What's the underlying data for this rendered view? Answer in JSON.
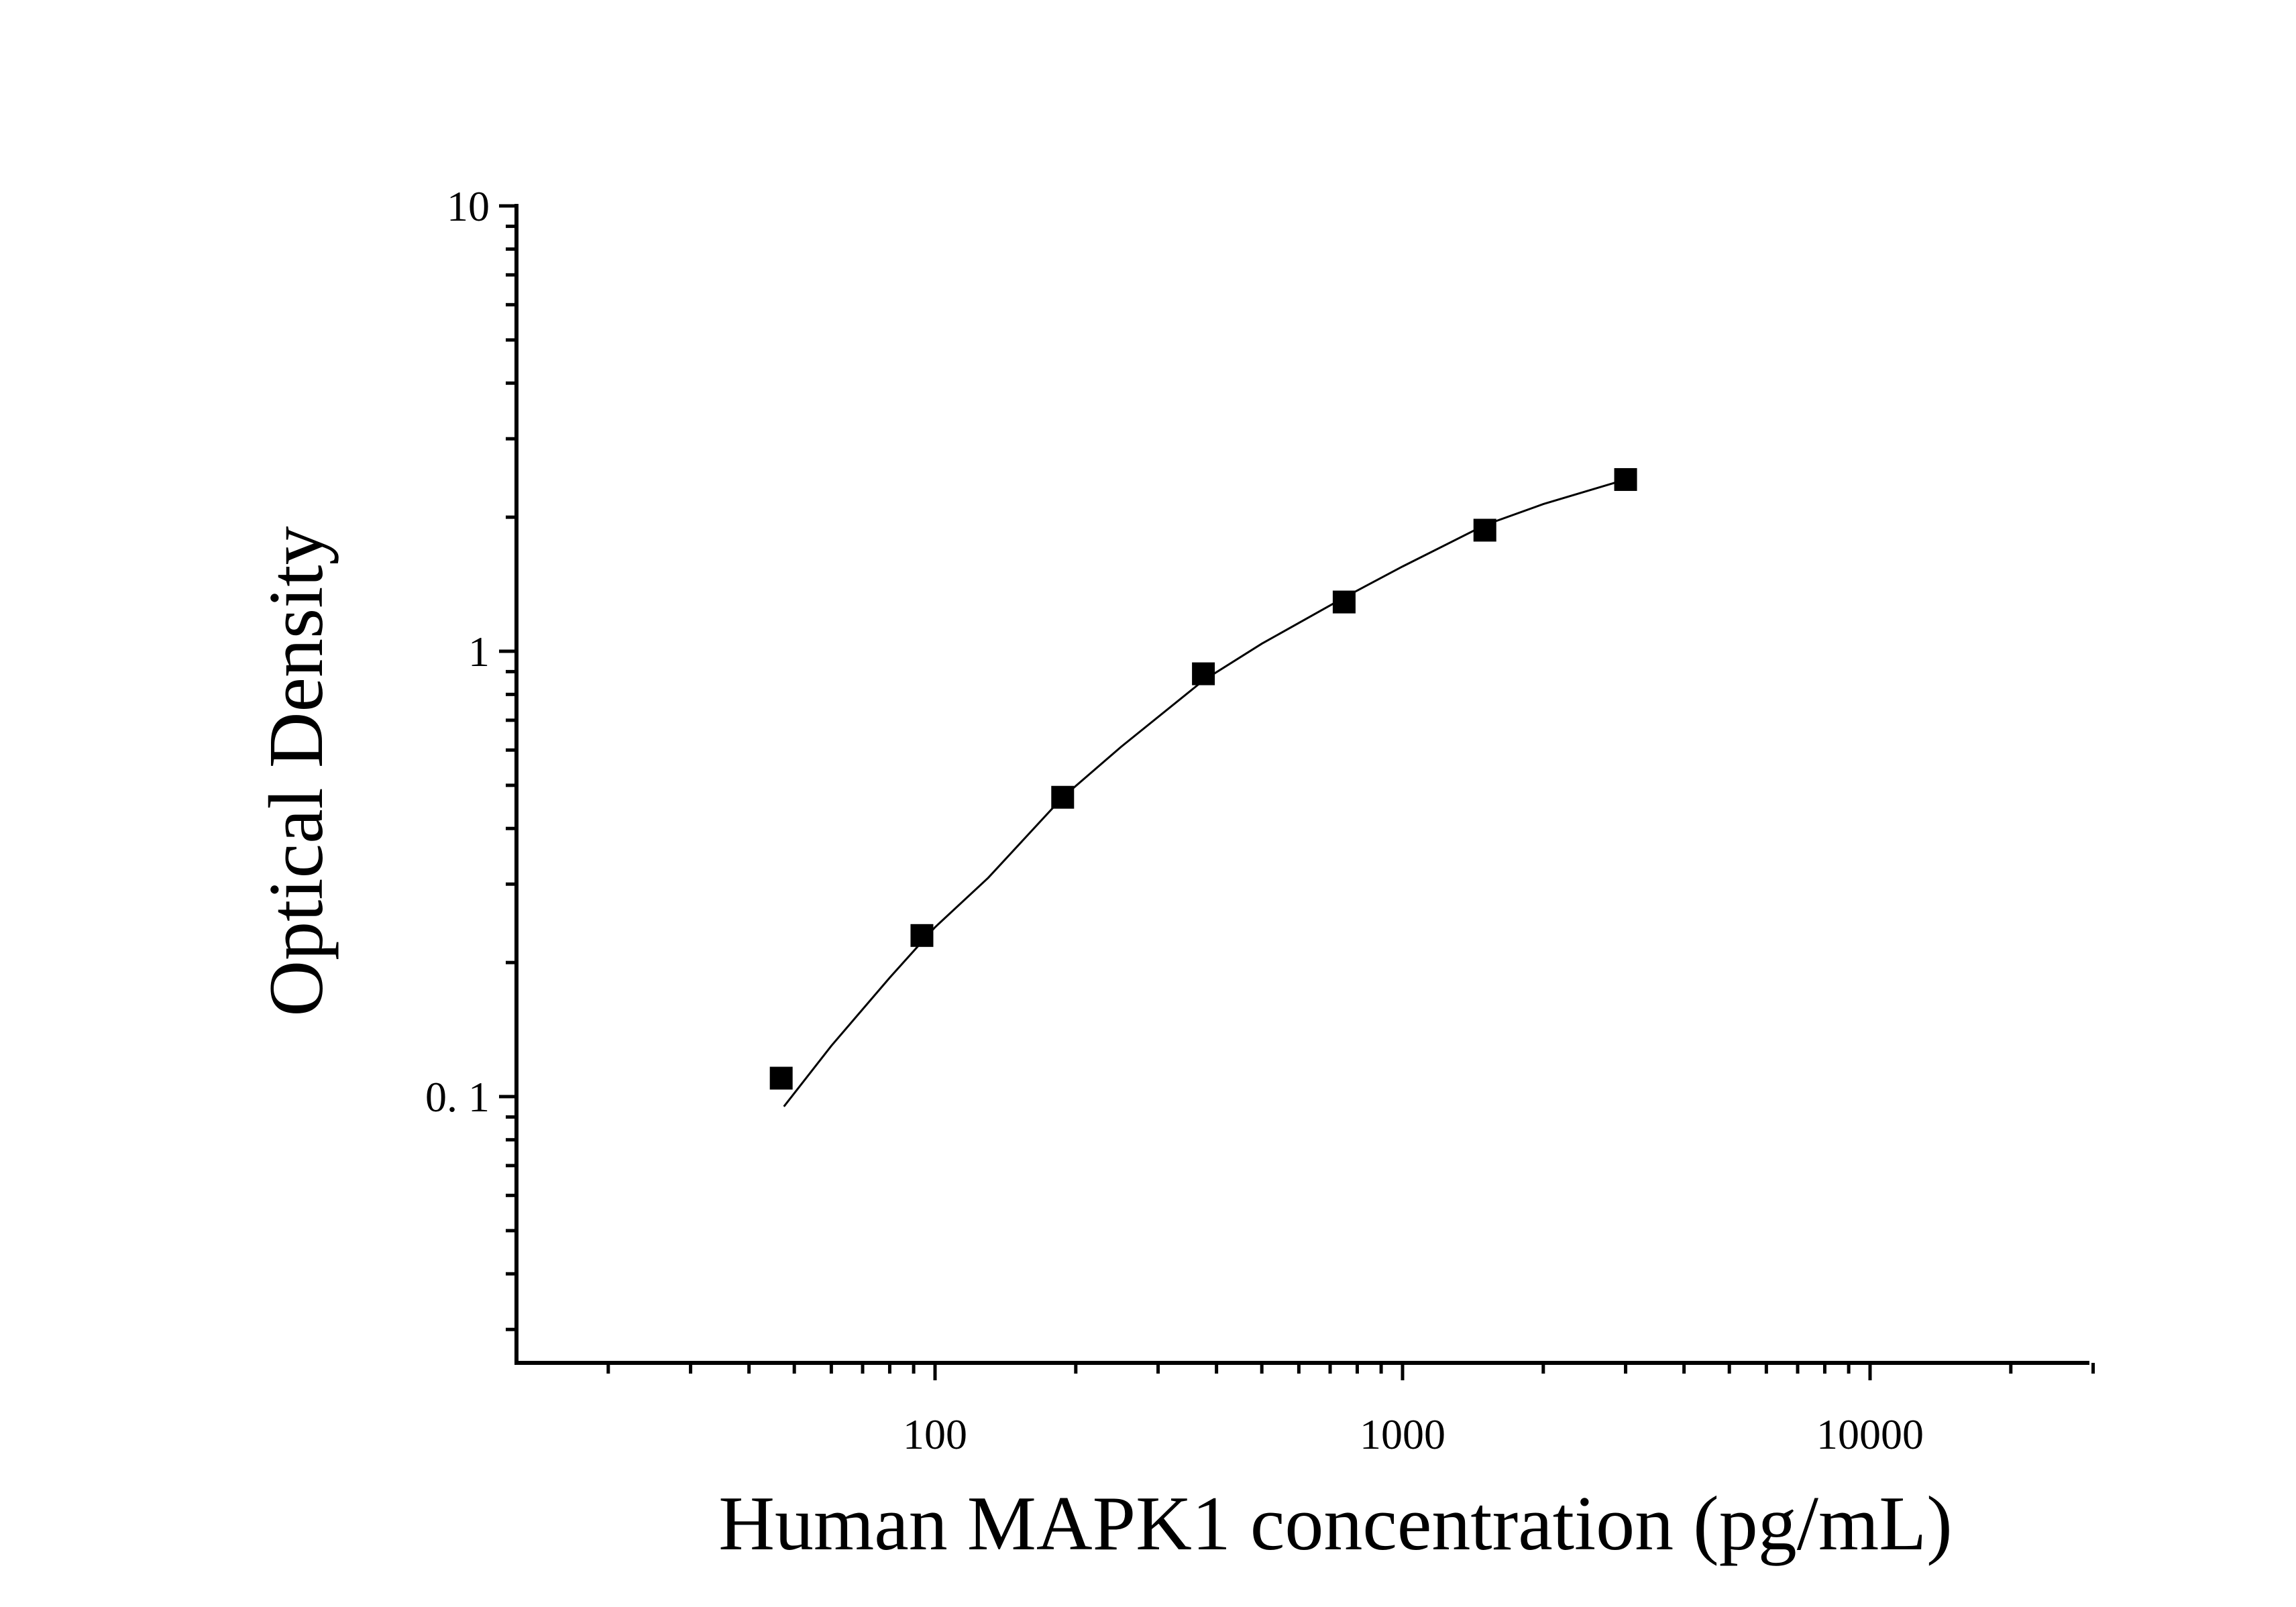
{
  "chart_data": {
    "type": "scatter",
    "xlabel": "Human MAPK1 concentration (pg/mL)",
    "ylabel": "Optical Density",
    "xscale": "log",
    "yscale": "log",
    "xlim": [
      12,
      30000
    ],
    "ylim": [
      0.025,
      10
    ],
    "x_ticks": [
      {
        "value": 100,
        "label": "100"
      },
      {
        "value": 1000,
        "label": "1000"
      },
      {
        "value": 10000,
        "label": "10000"
      }
    ],
    "y_ticks": [
      {
        "value": 10,
        "label": "10"
      },
      {
        "value": 1,
        "label": "1"
      },
      {
        "value": 0.1,
        "label": "0. 1"
      }
    ],
    "grid": false,
    "legend": false,
    "series": [
      {
        "marker": "square",
        "color": "#000000",
        "x": [
          46.88,
          93.75,
          187.5,
          375,
          750,
          1500,
          3000
        ],
        "y": [
          0.11,
          0.23,
          0.47,
          0.89,
          1.29,
          1.87,
          2.43
        ]
      }
    ],
    "fit_curve": {
      "color": "#000000",
      "x": [
        47.5,
        60,
        80,
        100,
        130,
        187.5,
        250,
        375,
        500,
        750,
        1000,
        1500,
        2000,
        3000
      ],
      "y": [
        0.095,
        0.13,
        0.185,
        0.24,
        0.31,
        0.47,
        0.61,
        0.86,
        1.04,
        1.32,
        1.55,
        1.92,
        2.14,
        2.43
      ]
    }
  }
}
